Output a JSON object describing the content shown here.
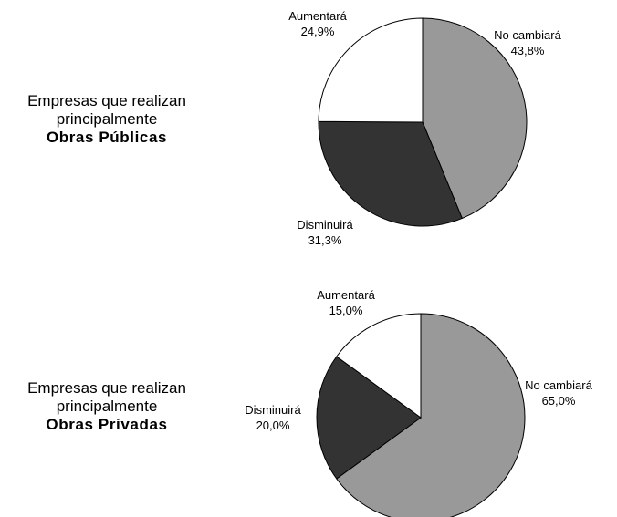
{
  "chart_data": [
    {
      "type": "pie",
      "label_lines": [
        "Empresas que realizan",
        "principalmente",
        "Obras Públicas"
      ],
      "slices": [
        {
          "label": "No cambiará",
          "value": 43.8,
          "value_text": "43,8%",
          "color": "#999999"
        },
        {
          "label": "Disminuirá",
          "value": 31.3,
          "value_text": "31,3%",
          "color": "#333333"
        },
        {
          "label": "Aumentará",
          "value": 24.9,
          "value_text": "24,9%",
          "color": "#ffffff"
        }
      ]
    },
    {
      "type": "pie",
      "label_lines": [
        "Empresas que realizan",
        "principalmente",
        "Obras Privadas"
      ],
      "slices": [
        {
          "label": "No cambiará",
          "value": 65.0,
          "value_text": "65,0%",
          "color": "#999999"
        },
        {
          "label": "Disminuirá",
          "value": 20.0,
          "value_text": "20,0%",
          "color": "#333333"
        },
        {
          "label": "Aumentará",
          "value": 15.0,
          "value_text": "15,0%",
          "color": "#ffffff"
        }
      ]
    }
  ]
}
